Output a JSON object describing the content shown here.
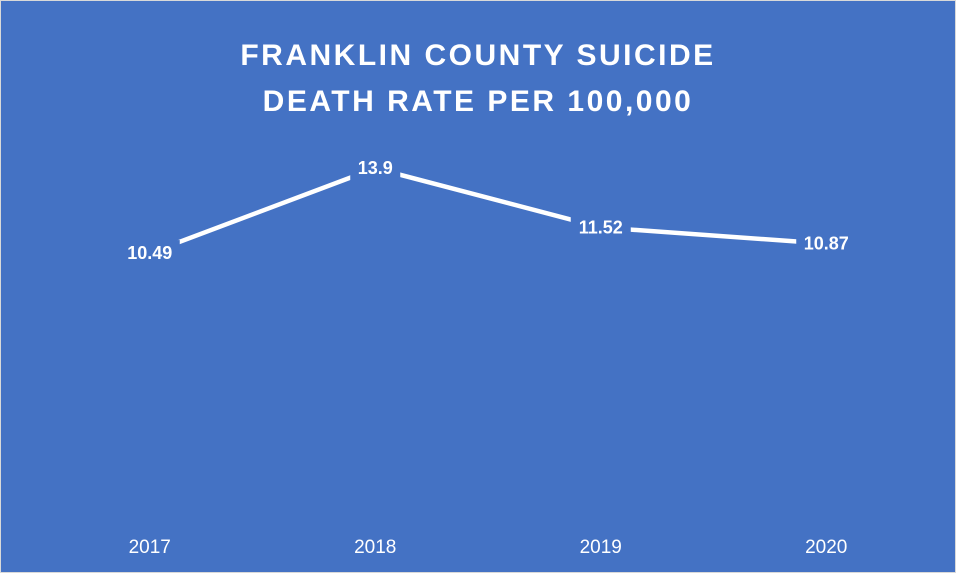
{
  "chart_data": {
    "type": "line",
    "title_lines": [
      "FRANKLIN COUNTY SUICIDE",
      "DEATH RATE PER 100,000"
    ],
    "categories": [
      "2017",
      "2018",
      "2019",
      "2020"
    ],
    "series": [
      {
        "values": [
          10.49,
          13.9,
          11.52,
          10.87
        ],
        "labels": [
          "10.49",
          "13.9",
          "11.52",
          "10.87"
        ]
      }
    ],
    "xlabel": "",
    "ylabel": "",
    "ylim": [
      0,
      16
    ],
    "grid": false,
    "legend": "none",
    "drop_lines": true,
    "data_labels": true
  },
  "colors": {
    "background": "#4472c4",
    "line": "#ffffff",
    "text": "#ffffff"
  }
}
